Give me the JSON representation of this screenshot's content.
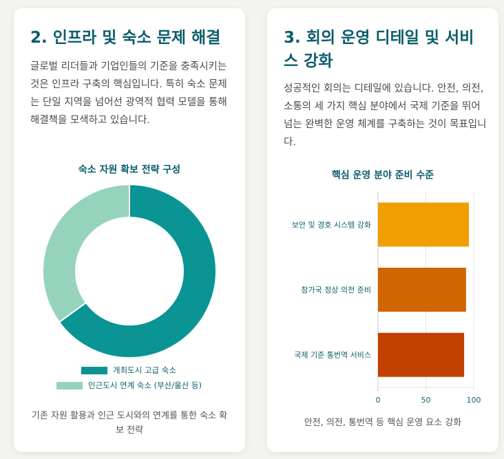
{
  "left_card": {
    "title": "2. 인프라 및 숙소 문제 해결",
    "body": "글로벌 리더들과 기업인들의 기준을 충족시키는 것은 인프라 구축의 핵심입니다. 특히 숙소 문제는 단일 지역을 넘어선 광역적 협력 모델을 통해 해결책을 모색하고 있습니다.",
    "caption": "기존 자원 활용과 인근 도시와의 연계를 통한 숙소 확보 전략"
  },
  "right_card": {
    "title": "3. 회의 운영 디테일 및 서비스 강화",
    "body": "성공적인 회의는 디테일에 있습니다. 안전, 의전, 소통의 세 가지 핵심 분야에서 국제 기준을 뛰어넘는 완벽한 운영 체계를 구축하는 것이 목표입니다.",
    "caption": "안전, 의전, 통번역 등 핵심 운영 요소 강화"
  },
  "colors": {
    "title": "#0b5d6b",
    "donut_primary": "#0b9494",
    "donut_secondary": "#96d3bd",
    "bar_1": "#f09e00",
    "bar_2": "#d06600",
    "bar_3": "#c24000"
  },
  "chart_data": [
    {
      "type": "pie",
      "title": "숙소 자원 확보 전략 구성",
      "categories": [
        "개최도시 고급 숙소",
        "인근도시 연계 숙소 (부산/울산 등)"
      ],
      "values": [
        65,
        35
      ],
      "legend_position": "bottom"
    },
    {
      "type": "bar",
      "orientation": "horizontal",
      "title": "핵심 운영 분야 준비 수준",
      "categories": [
        "보안 및 경호 시스템 강화",
        "참가국 정상 의전 준비",
        "국제 기준 통번역 서비스"
      ],
      "values": [
        95,
        92,
        90
      ],
      "xlim": [
        0,
        100
      ],
      "xticks": [
        "0",
        "50",
        "100"
      ],
      "grid": true
    }
  ]
}
